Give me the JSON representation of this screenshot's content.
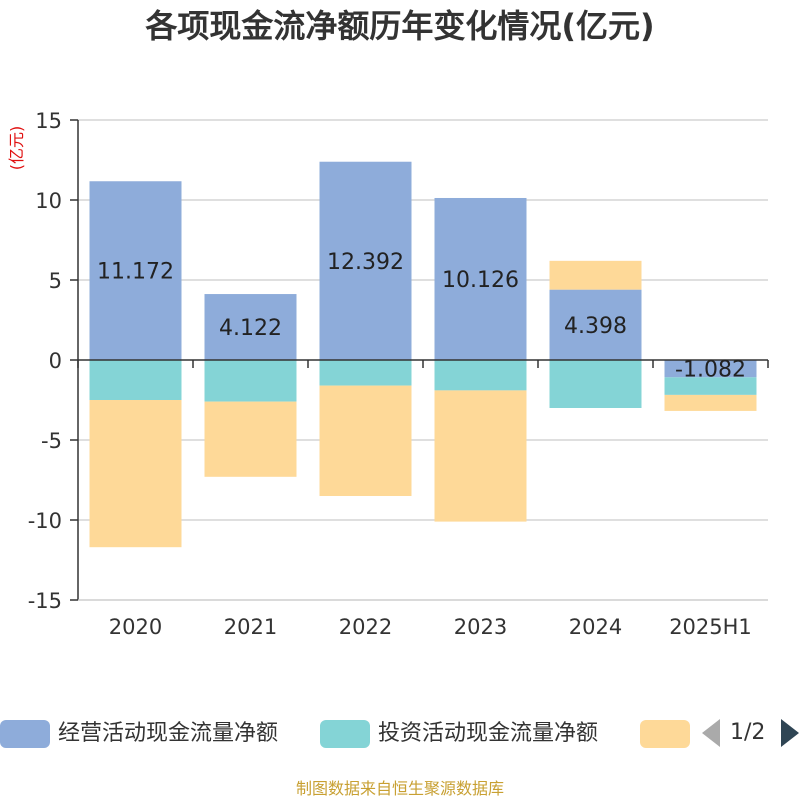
{
  "chart_data": {
    "type": "bar",
    "stacked": true,
    "title": "各项现金流净额历年变化情况(亿元)",
    "ylabel": "(亿元)",
    "categories": [
      "2020",
      "2021",
      "2022",
      "2023",
      "2024",
      "2025H1"
    ],
    "ylim": [
      -15,
      15
    ],
    "yticks": [
      15,
      10,
      5,
      0,
      -5,
      -10,
      -15
    ],
    "grid": true,
    "legend_position": "bottom",
    "series": [
      {
        "name": "经营活动现金流量净额",
        "color": "#8eacda",
        "values": [
          11.172,
          4.122,
          12.392,
          10.126,
          4.398,
          -1.082
        ],
        "labels": [
          "11.172",
          "4.122",
          "12.392",
          "10.126",
          "4.398",
          "-1.082"
        ]
      },
      {
        "name": "投资活动现金流量净额",
        "color": "#84d4d6",
        "values": [
          -2.5,
          -2.6,
          -1.6,
          -1.9,
          -3.0,
          -1.1
        ]
      },
      {
        "name": "",
        "color": "#fed998",
        "values": [
          -9.2,
          -4.7,
          -6.9,
          -8.2,
          1.8,
          -1.0
        ]
      }
    ]
  },
  "legend": {
    "page": "1/2"
  },
  "source": "制图数据来自恒生聚源数据库"
}
